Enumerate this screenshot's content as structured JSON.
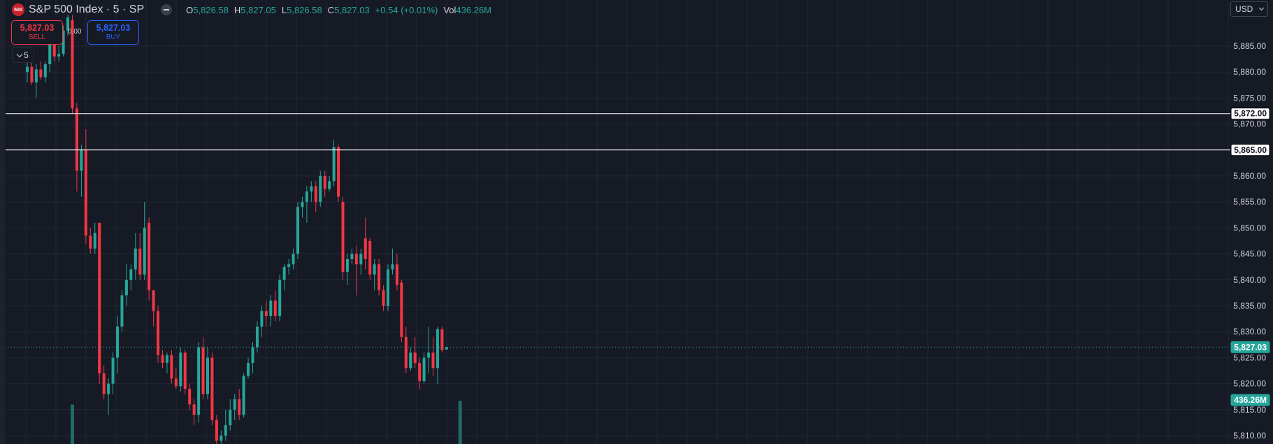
{
  "header": {
    "logo_text": "500",
    "symbol_title": "S&P 500 Index · 5 · SP",
    "ohlc": [
      {
        "key": "O",
        "value": "5,826.58"
      },
      {
        "key": "H",
        "value": "5,827.05"
      },
      {
        "key": "L",
        "value": "5,826.58"
      },
      {
        "key": "C",
        "value": "5,827.03"
      }
    ],
    "change": "+0.54 (+0.01%)",
    "volume_key": "Vol",
    "volume_value": "436.26M"
  },
  "trade": {
    "sell_price": "5,827.03",
    "sell_label": "SELL",
    "spread": "0.00",
    "buy_price": "5,827.03",
    "buy_label": "BUY"
  },
  "interval_button": "5",
  "currency": "USD",
  "colors": {
    "background": "#161a25",
    "grid": "#232734",
    "up": "#26a69a",
    "down": "#f23645",
    "text": "#d1d4dc",
    "hline": "#ffffff"
  },
  "chart_data": {
    "type": "candlestick",
    "y_axis_ticks": [
      5885,
      5880,
      5875,
      5870,
      5865,
      5860,
      5855,
      5850,
      5845,
      5840,
      5835,
      5830,
      5825,
      5820,
      5815,
      5810
    ],
    "y_axis_labels": [
      "5,885.00",
      "5,880.00",
      "5,875.00",
      "5,870.00",
      "5,865.00",
      "5,860.00",
      "5,855.00",
      "5,850.00",
      "5,845.00",
      "5,840.00",
      "5,835.00",
      "5,830.00",
      "5,825.00",
      "5,820.00",
      "5,815.00",
      "5,810.00"
    ],
    "grid": true,
    "horizontal_lines": [
      {
        "price": 5872.0,
        "label": "5,872.00"
      },
      {
        "price": 5865.0,
        "label": "5,865.00"
      }
    ],
    "last_price": {
      "value": 5827.03,
      "label": "5,827.03"
    },
    "volume_label": "436.26M",
    "ohlc_series": [
      {
        "o": 5880.0,
        "h": 5884.0,
        "l": 5878.0,
        "c": 5881.0
      },
      {
        "o": 5881.0,
        "h": 5882.0,
        "l": 5877.5,
        "c": 5878.0
      },
      {
        "o": 5878.0,
        "h": 5881.5,
        "l": 5875.0,
        "c": 5880.5
      },
      {
        "o": 5880.5,
        "h": 5882.0,
        "l": 5878.5,
        "c": 5879.0
      },
      {
        "o": 5879.0,
        "h": 5882.0,
        "l": 5878.0,
        "c": 5881.5
      },
      {
        "o": 5881.5,
        "h": 5887.0,
        "l": 5880.0,
        "c": 5886.0
      },
      {
        "o": 5886.0,
        "h": 5888.0,
        "l": 5882.0,
        "c": 5883.0
      },
      {
        "o": 5883.0,
        "h": 5885.0,
        "l": 5882.0,
        "c": 5883.5
      },
      {
        "o": 5883.5,
        "h": 5889.0,
        "l": 5883.0,
        "c": 5888.0
      },
      {
        "o": 5888.0,
        "h": 5891.0,
        "l": 5887.0,
        "c": 5890.5
      },
      {
        "o": 5890.0,
        "h": 5891.0,
        "l": 5872.0,
        "c": 5873.0
      },
      {
        "o": 5873.0,
        "h": 5874.0,
        "l": 5857.0,
        "c": 5861.0
      },
      {
        "o": 5861.0,
        "h": 5866.0,
        "l": 5856.0,
        "c": 5865.0
      },
      {
        "o": 5865.0,
        "h": 5869.0,
        "l": 5847.0,
        "c": 5848.5
      },
      {
        "o": 5848.5,
        "h": 5850.0,
        "l": 5845.0,
        "c": 5846.0
      },
      {
        "o": 5846.0,
        "h": 5851.0,
        "l": 5845.0,
        "c": 5849.0
      },
      {
        "o": 5851.0,
        "h": 5851.0,
        "l": 5820.0,
        "c": 5822.0
      },
      {
        "o": 5822.0,
        "h": 5823.5,
        "l": 5817.0,
        "c": 5818.0
      },
      {
        "o": 5818.0,
        "h": 5821.0,
        "l": 5814.0,
        "c": 5820.0
      },
      {
        "o": 5820.0,
        "h": 5826.0,
        "l": 5818.0,
        "c": 5825.0
      },
      {
        "o": 5825.0,
        "h": 5833.0,
        "l": 5822.0,
        "c": 5831.0
      },
      {
        "o": 5831.0,
        "h": 5838.0,
        "l": 5830.0,
        "c": 5837.0
      },
      {
        "o": 5837.0,
        "h": 5843.0,
        "l": 5835.0,
        "c": 5840.0
      },
      {
        "o": 5840.0,
        "h": 5843.0,
        "l": 5838.0,
        "c": 5842.0
      },
      {
        "o": 5842.0,
        "h": 5849.0,
        "l": 5840.0,
        "c": 5846.0
      },
      {
        "o": 5846.0,
        "h": 5849.0,
        "l": 5840.0,
        "c": 5841.0
      },
      {
        "o": 5841.0,
        "h": 5855.0,
        "l": 5840.0,
        "c": 5850.0
      },
      {
        "o": 5851.0,
        "h": 5852.0,
        "l": 5836.0,
        "c": 5838.0
      },
      {
        "o": 5838.0,
        "h": 5838.0,
        "l": 5831.0,
        "c": 5834.0
      },
      {
        "o": 5834.0,
        "h": 5835.0,
        "l": 5824.0,
        "c": 5825.5
      },
      {
        "o": 5825.5,
        "h": 5826.5,
        "l": 5823.0,
        "c": 5824.0
      },
      {
        "o": 5824.0,
        "h": 5826.0,
        "l": 5822.0,
        "c": 5825.5
      },
      {
        "o": 5825.5,
        "h": 5826.5,
        "l": 5820.0,
        "c": 5821.0
      },
      {
        "o": 5821.0,
        "h": 5823.0,
        "l": 5819.0,
        "c": 5819.5
      },
      {
        "o": 5819.5,
        "h": 5827.0,
        "l": 5818.5,
        "c": 5826.0
      },
      {
        "o": 5826.0,
        "h": 5826.5,
        "l": 5818.0,
        "c": 5819.0
      },
      {
        "o": 5819.0,
        "h": 5820.0,
        "l": 5815.0,
        "c": 5816.0
      },
      {
        "o": 5816.0,
        "h": 5817.0,
        "l": 5812.0,
        "c": 5814.0
      },
      {
        "o": 5814.0,
        "h": 5828.0,
        "l": 5812.5,
        "c": 5827.0
      },
      {
        "o": 5827.0,
        "h": 5829.0,
        "l": 5817.0,
        "c": 5818.0
      },
      {
        "o": 5818.0,
        "h": 5827.0,
        "l": 5817.0,
        "c": 5825.0
      },
      {
        "o": 5825.0,
        "h": 5826.0,
        "l": 5812.0,
        "c": 5813.0
      },
      {
        "o": 5813.0,
        "h": 5814.0,
        "l": 5807.0,
        "c": 5809.0
      },
      {
        "o": 5809.0,
        "h": 5811.0,
        "l": 5806.0,
        "c": 5810.0
      },
      {
        "o": 5810.0,
        "h": 5815.0,
        "l": 5809.0,
        "c": 5812.0
      },
      {
        "o": 5812.0,
        "h": 5817.0,
        "l": 5811.0,
        "c": 5815.0
      },
      {
        "o": 5815.0,
        "h": 5818.0,
        "l": 5813.0,
        "c": 5817.0
      },
      {
        "o": 5817.0,
        "h": 5819.0,
        "l": 5813.0,
        "c": 5814.0
      },
      {
        "o": 5814.0,
        "h": 5822.0,
        "l": 5813.5,
        "c": 5821.5
      },
      {
        "o": 5821.5,
        "h": 5825.0,
        "l": 5821.0,
        "c": 5824.0
      },
      {
        "o": 5824.0,
        "h": 5828.0,
        "l": 5822.0,
        "c": 5827.0
      },
      {
        "o": 5827.0,
        "h": 5832.0,
        "l": 5826.0,
        "c": 5831.0
      },
      {
        "o": 5831.0,
        "h": 5835.0,
        "l": 5829.0,
        "c": 5834.0
      },
      {
        "o": 5834.0,
        "h": 5836.0,
        "l": 5831.0,
        "c": 5833.0
      },
      {
        "o": 5833.0,
        "h": 5837.0,
        "l": 5831.0,
        "c": 5836.0
      },
      {
        "o": 5836.0,
        "h": 5838.0,
        "l": 5832.0,
        "c": 5833.0
      },
      {
        "o": 5833.0,
        "h": 5841.0,
        "l": 5832.0,
        "c": 5840.0
      },
      {
        "o": 5840.0,
        "h": 5843.0,
        "l": 5838.0,
        "c": 5842.5
      },
      {
        "o": 5842.5,
        "h": 5844.0,
        "l": 5841.0,
        "c": 5843.0
      },
      {
        "o": 5843.0,
        "h": 5846.0,
        "l": 5842.0,
        "c": 5845.0
      },
      {
        "o": 5845.0,
        "h": 5855.0,
        "l": 5844.0,
        "c": 5854.0
      },
      {
        "o": 5854.0,
        "h": 5856.0,
        "l": 5852.0,
        "c": 5855.0
      },
      {
        "o": 5855.0,
        "h": 5858.0,
        "l": 5851.0,
        "c": 5857.0
      },
      {
        "o": 5857.0,
        "h": 5859.0,
        "l": 5855.0,
        "c": 5858.0
      },
      {
        "o": 5858.0,
        "h": 5859.0,
        "l": 5853.0,
        "c": 5855.0
      },
      {
        "o": 5855.0,
        "h": 5861.0,
        "l": 5854.0,
        "c": 5860.0
      },
      {
        "o": 5860.0,
        "h": 5861.0,
        "l": 5856.0,
        "c": 5857.5
      },
      {
        "o": 5857.5,
        "h": 5860.0,
        "l": 5857.0,
        "c": 5859.0
      },
      {
        "o": 5859.0,
        "h": 5867.0,
        "l": 5858.0,
        "c": 5865.5
      },
      {
        "o": 5865.5,
        "h": 5866.0,
        "l": 5855.0,
        "c": 5856.0
      },
      {
        "o": 5855.0,
        "h": 5856.0,
        "l": 5840.0,
        "c": 5841.5
      },
      {
        "o": 5841.5,
        "h": 5845.0,
        "l": 5839.0,
        "c": 5844.0
      },
      {
        "o": 5844.0,
        "h": 5846.0,
        "l": 5843.0,
        "c": 5845.0
      },
      {
        "o": 5845.0,
        "h": 5846.5,
        "l": 5837.0,
        "c": 5843.0
      },
      {
        "o": 5843.0,
        "h": 5846.0,
        "l": 5841.0,
        "c": 5845.0
      },
      {
        "o": 5848.0,
        "h": 5852.0,
        "l": 5842.0,
        "c": 5844.0
      },
      {
        "o": 5847.5,
        "h": 5848.0,
        "l": 5840.0,
        "c": 5841.0
      },
      {
        "o": 5841.0,
        "h": 5844.0,
        "l": 5838.0,
        "c": 5843.0
      },
      {
        "o": 5843.0,
        "h": 5844.0,
        "l": 5837.0,
        "c": 5838.0
      },
      {
        "o": 5838.0,
        "h": 5839.0,
        "l": 5834.0,
        "c": 5835.0
      },
      {
        "o": 5835.0,
        "h": 5843.0,
        "l": 5834.0,
        "c": 5842.0
      },
      {
        "o": 5842.0,
        "h": 5846.0,
        "l": 5841.0,
        "c": 5843.0
      },
      {
        "o": 5843.0,
        "h": 5845.0,
        "l": 5838.0,
        "c": 5839.0
      },
      {
        "o": 5839.5,
        "h": 5840.0,
        "l": 5828.0,
        "c": 5829.0
      },
      {
        "o": 5829.0,
        "h": 5831.0,
        "l": 5822.0,
        "c": 5823.0
      },
      {
        "o": 5823.0,
        "h": 5827.0,
        "l": 5822.5,
        "c": 5826.0
      },
      {
        "o": 5826.0,
        "h": 5829.0,
        "l": 5823.0,
        "c": 5824.0
      },
      {
        "o": 5824.0,
        "h": 5825.0,
        "l": 5819.0,
        "c": 5820.5
      },
      {
        "o": 5820.5,
        "h": 5826.0,
        "l": 5820.0,
        "c": 5825.0
      },
      {
        "o": 5825.0,
        "h": 5831.0,
        "l": 5822.0,
        "c": 5826.0
      },
      {
        "o": 5826.0,
        "h": 5829.0,
        "l": 5821.5,
        "c": 5823.0
      },
      {
        "o": 5823.0,
        "h": 5831.0,
        "l": 5820.0,
        "c": 5830.5
      },
      {
        "o": 5830.5,
        "h": 5831.0,
        "l": 5826.0,
        "c": 5826.5
      },
      {
        "o": 5826.58,
        "h": 5827.05,
        "l": 5826.58,
        "c": 5827.03
      }
    ],
    "volume_bars": [
      {
        "index": 10,
        "level": 0.35
      },
      {
        "index": 96,
        "level": 0.42
      }
    ]
  }
}
